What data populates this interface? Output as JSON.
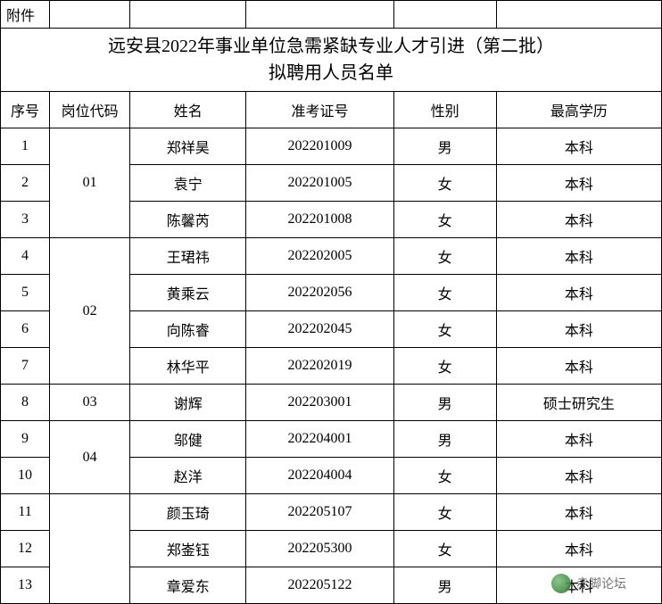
{
  "attachment_label": "附件",
  "title_line1": "远安县2022年事业单位急需紧缺专业人才引进（第二批）",
  "title_line2": "拟聘用人员名单",
  "columns": {
    "seq": "序号",
    "post_code": "岗位代码",
    "name": "姓名",
    "exam_no": "准考证号",
    "gender": "性别",
    "education": "最高学历"
  },
  "col_widths": {
    "seq": 55,
    "post_code": 90,
    "name": 130,
    "exam_no": 165,
    "gender": 115,
    "education": 185
  },
  "groups": [
    {
      "post_code": "01",
      "rows": [
        {
          "seq": "1",
          "name": "郑祥昊",
          "exam_no": "202201009",
          "gender": "男",
          "education": "本科"
        },
        {
          "seq": "2",
          "name": "袁宁",
          "exam_no": "202201005",
          "gender": "女",
          "education": "本科"
        },
        {
          "seq": "3",
          "name": "陈馨芮",
          "exam_no": "202201008",
          "gender": "女",
          "education": "本科"
        }
      ]
    },
    {
      "post_code": "02",
      "rows": [
        {
          "seq": "4",
          "name": "王珺祎",
          "exam_no": "202202005",
          "gender": "女",
          "education": "本科"
        },
        {
          "seq": "5",
          "name": "黄乘云",
          "exam_no": "202202056",
          "gender": "女",
          "education": "本科"
        },
        {
          "seq": "6",
          "name": "向陈睿",
          "exam_no": "202202045",
          "gender": "女",
          "education": "本科"
        },
        {
          "seq": "7",
          "name": "林华平",
          "exam_no": "202202019",
          "gender": "女",
          "education": "本科"
        }
      ]
    },
    {
      "post_code": "03",
      "rows": [
        {
          "seq": "8",
          "name": "谢辉",
          "exam_no": "202203001",
          "gender": "男",
          "education": "硕士研究生"
        }
      ]
    },
    {
      "post_code": "04",
      "rows": [
        {
          "seq": "9",
          "name": "邬健",
          "exam_no": "202204001",
          "gender": "男",
          "education": "本科"
        },
        {
          "seq": "10",
          "name": "赵洋",
          "exam_no": "202204004",
          "gender": "女",
          "education": "本科"
        }
      ]
    },
    {
      "post_code": "",
      "rows": [
        {
          "seq": "11",
          "name": "颜玉琦",
          "exam_no": "202205107",
          "gender": "女",
          "education": "本科"
        },
        {
          "seq": "12",
          "name": "郑崟钰",
          "exam_no": "202205300",
          "gender": "女",
          "education": "本科"
        },
        {
          "seq": "13",
          "name": "章爱东",
          "exam_no": "202205122",
          "gender": "男",
          "education": "本科"
        }
      ]
    }
  ],
  "watermark_text": "赤脚论坛",
  "colors": {
    "border": "#000000",
    "background": "#ffffff",
    "text": "#000000"
  }
}
